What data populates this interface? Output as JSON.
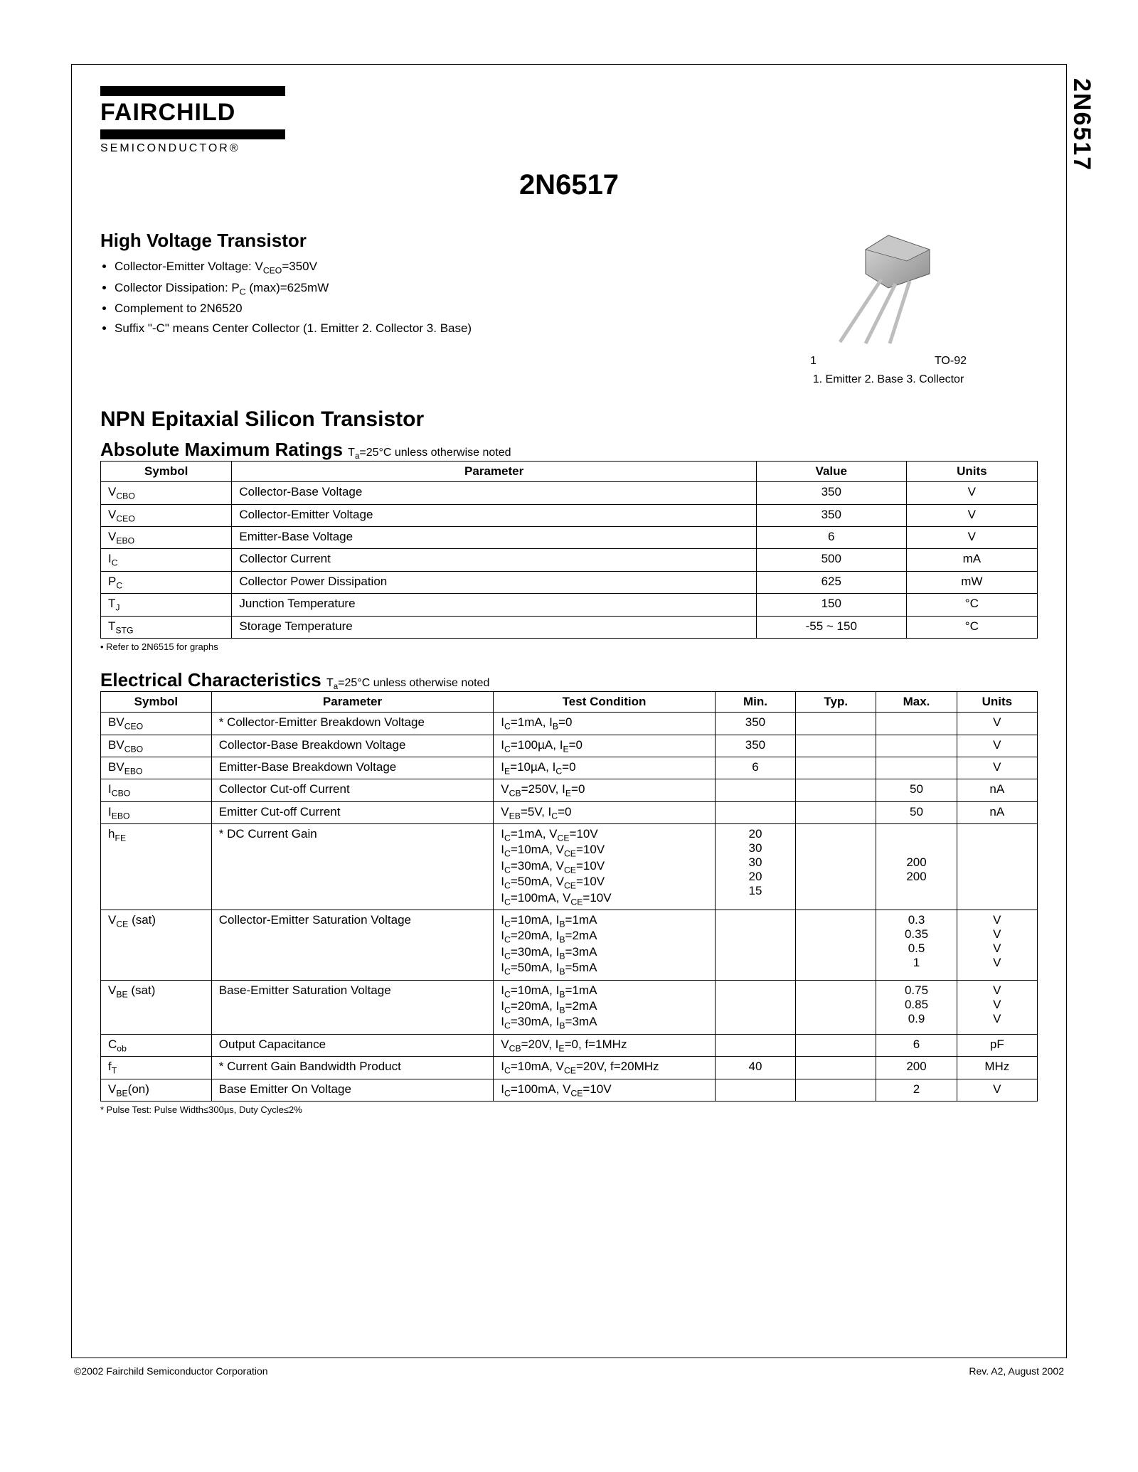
{
  "sideLabel": "2N6517",
  "logo": {
    "name": "FAIRCHILD",
    "sub": "SEMICONDUCTOR®"
  },
  "partTitle": "2N6517",
  "highVoltage": {
    "heading": "High Voltage Transistor",
    "b1a": "Collector-Emitter Voltage: V",
    "b1sub": "CEO",
    "b1b": "=350V",
    "b2a": "Collector Dissipation: P",
    "b2sub": "C",
    "b2b": " (max)=625mW",
    "b3": "Complement to 2N6520",
    "b4": "Suffix \"-C\" means Center Collector (1. Emitter 2. Collector 3. Base)"
  },
  "pkg": {
    "lead1": "1",
    "type": "TO-92",
    "pins": "1. Emitter   2. Base   3. Collector"
  },
  "npnHeading": "NPN Epitaxial Silicon Transistor",
  "amr": {
    "heading": "Absolute Maximum Ratings ",
    "noteA": "T",
    "noteSub": "a",
    "noteB": "=25°C unless otherwise noted",
    "hSymbol": "Symbol",
    "hParam": "Parameter",
    "hValue": "Value",
    "hUnits": "Units",
    "r1s": "V",
    "r1sub": "CBO",
    "r1p": "Collector-Base Voltage",
    "r1v": "350",
    "r1u": "V",
    "r2s": "V",
    "r2sub": "CEO",
    "r2p": "Collector-Emitter Voltage",
    "r2v": "350",
    "r2u": "V",
    "r3s": "V",
    "r3sub": "EBO",
    "r3p": "Emitter-Base Voltage",
    "r3v": "6",
    "r3u": "V",
    "r4s": "I",
    "r4sub": "C",
    "r4p": "Collector Current",
    "r4v": "500",
    "r4u": "mA",
    "r5s": "P",
    "r5sub": "C",
    "r5p": "Collector Power Dissipation",
    "r5v": "625",
    "r5u": "mW",
    "r6s": "T",
    "r6sub": "J",
    "r6p": "Junction Temperature",
    "r6v": "150",
    "r6u": "°C",
    "r7s": "T",
    "r7sub": "STG",
    "r7p": "Storage Temperature",
    "r7v": "-55 ~ 150",
    "r7u": "°C",
    "foot": "• Refer to 2N6515 for graphs"
  },
  "ec": {
    "heading": "Electrical Characteristics ",
    "noteA": "T",
    "noteSub": "a",
    "noteB": "=25°C unless otherwise noted",
    "hSymbol": "Symbol",
    "hParam": "Parameter",
    "hTest": "Test Condition",
    "hMin": "Min.",
    "hTyp": "Typ.",
    "hMax": "Max.",
    "hUnits": "Units",
    "r1s": "BV",
    "r1sub": "CEO",
    "r1p": "* Collector-Emitter Breakdown Voltage",
    "r1t": "I_C=1mA, I_B=0",
    "r1min": "350",
    "r1u": "V",
    "r2s": "BV",
    "r2sub": "CBO",
    "r2p": "Collector-Base Breakdown Voltage",
    "r2t": "I_C=100µA, I_E=0",
    "r2min": "350",
    "r2u": "V",
    "r3s": "BV",
    "r3sub": "EBO",
    "r3p": "Emitter-Base Breakdown Voltage",
    "r3t": "I_E=10µA, I_C=0",
    "r3min": "6",
    "r3u": "V",
    "r4s": "I",
    "r4sub": "CBO",
    "r4p": "Collector Cut-off Current",
    "r4t": "V_CB=250V, I_E=0",
    "r4max": "50",
    "r4u": "nA",
    "r5s": "I",
    "r5sub": "EBO",
    "r5p": "Emitter Cut-off Current",
    "r5t": "V_EB=5V, I_C=0",
    "r5max": "50",
    "r5u": "nA",
    "r6s": "h",
    "r6sub": "FE",
    "r6p": "* DC Current Gain",
    "r6t1": "I_C=1mA, V_CE=10V",
    "r6min1": "20",
    "r6t2": "I_C=10mA, V_CE=10V",
    "r6min2": "30",
    "r6t3": "I_C=30mA, V_CE=10V",
    "r6min3": "30",
    "r6max3": "200",
    "r6t4": "I_C=50mA, V_CE=10V",
    "r6min4": "20",
    "r6max4": "200",
    "r6t5": "I_C=100mA, V_CE=10V",
    "r6min5": "15",
    "r7s": "V",
    "r7sub": "CE",
    "r7suf": " (sat)",
    "r7p": "Collector-Emitter Saturation Voltage",
    "r7t1": "I_C=10mA, I_B=1mA",
    "r7max1": "0.3",
    "r7u": "V",
    "r7t2": "I_C=20mA, I_B=2mA",
    "r7max2": "0.35",
    "r7t3": "I_C=30mA, I_B=3mA",
    "r7max3": "0.5",
    "r7t4": "I_C=50mA, I_B=5mA",
    "r7max4": "1",
    "r8s": "V",
    "r8sub": "BE",
    "r8suf": " (sat)",
    "r8p": "Base-Emitter Saturation Voltage",
    "r8t1": "I_C=10mA, I_B=1mA",
    "r8max1": "0.75",
    "r8u": "V",
    "r8t2": "I_C=20mA, I_B=2mA",
    "r8max2": "0.85",
    "r8t3": "I_C=30mA, I_B=3mA",
    "r8max3": "0.9",
    "r9s": "C",
    "r9sub": "ob",
    "r9p": "Output Capacitance",
    "r9t": "V_CB=20V, I_E=0, f=1MHz",
    "r9max": "6",
    "r9u": "pF",
    "r10s": "f",
    "r10sub": "T",
    "r10p": "* Current Gain Bandwidth Product",
    "r10t": "I_C=10mA, V_CE=20V, f=20MHz",
    "r10min": "40",
    "r10max": "200",
    "r10u": "MHz",
    "r11s": "V",
    "r11sub": "BE",
    "r11suf": "(on)",
    "r11p": "Base Emitter On Voltage",
    "r11t": "I_C=100mA, V_CE=10V",
    "r11max": "2",
    "r11u": "V",
    "foot": "*  Pulse Test: Pulse Width≤300µs, Duty Cycle≤2%"
  },
  "footer": {
    "left": "©2002 Fairchild Semiconductor Corporation",
    "right": "Rev. A2, August 2002"
  }
}
